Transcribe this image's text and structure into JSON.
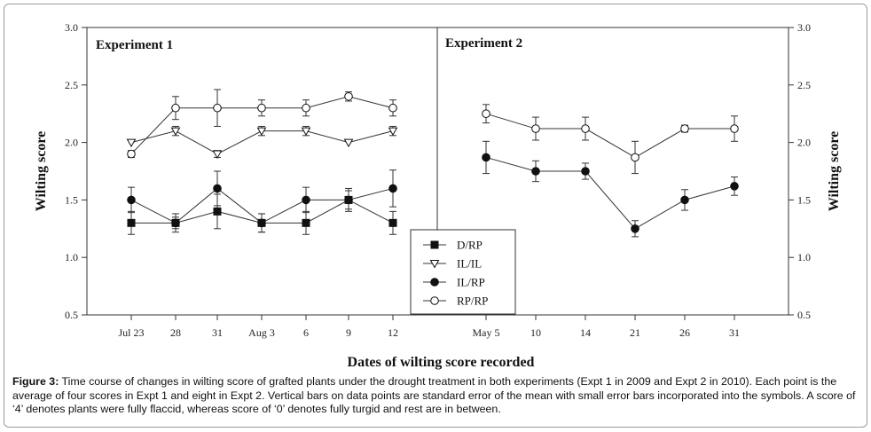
{
  "chart_data": {
    "type": "line",
    "ylabel": "Wilting score",
    "xlabel": "Dates of wilting score recorded",
    "ylim": [
      0.5,
      3.0
    ],
    "yticks": [
      "0.5",
      "1.0",
      "1.5",
      "2.0",
      "2.5",
      "3.0"
    ],
    "legend_position": "bottom-center",
    "panels": [
      {
        "title": "Experiment 1",
        "categories": [
          "Jul 23",
          "28",
          "31",
          "Aug 3",
          "6",
          "9",
          "12"
        ],
        "series": [
          {
            "name": "D/RP",
            "marker": "filled-square",
            "values": [
              1.3,
              1.3,
              1.4,
              1.3,
              1.3,
              1.5,
              1.3
            ],
            "errors": [
              0.1,
              0.05,
              0.15,
              0.08,
              0.1,
              0.08,
              0.1
            ]
          },
          {
            "name": "IL/IL",
            "marker": "open-triangle",
            "values": [
              2.0,
              2.1,
              1.9,
              2.1,
              2.1,
              2.0,
              2.1
            ],
            "errors": [
              0.0,
              0.04,
              0.03,
              0.04,
              0.04,
              0.0,
              0.04
            ]
          },
          {
            "name": "IL/RP",
            "marker": "filled-circle",
            "values": [
              1.5,
              1.3,
              1.6,
              1.3,
              1.5,
              1.5,
              1.6
            ],
            "errors": [
              0.11,
              0.08,
              0.15,
              0.08,
              0.11,
              0.1,
              0.16
            ]
          },
          {
            "name": "RP/RP",
            "marker": "open-circle",
            "values": [
              1.9,
              2.3,
              2.3,
              2.3,
              2.3,
              2.4,
              2.3
            ],
            "errors": [
              0.03,
              0.1,
              0.16,
              0.07,
              0.07,
              0.04,
              0.07
            ]
          }
        ]
      },
      {
        "title": "Experiment 2",
        "categories": [
          "May 5",
          "10",
          "14",
          "21",
          "26",
          "31"
        ],
        "series": [
          {
            "name": "IL/RP",
            "marker": "filled-circle",
            "values": [
              1.87,
              1.75,
              1.75,
              1.25,
              1.5,
              1.62
            ],
            "errors": [
              0.14,
              0.09,
              0.07,
              0.07,
              0.09,
              0.08
            ]
          },
          {
            "name": "RP/RP",
            "marker": "open-circle",
            "values": [
              2.25,
              2.12,
              2.12,
              1.87,
              2.12,
              2.12
            ],
            "errors": [
              0.08,
              0.1,
              0.1,
              0.14,
              0.03,
              0.11
            ]
          }
        ]
      }
    ],
    "legend": [
      "D/RP",
      "IL/IL",
      "IL/RP",
      "RP/RP"
    ]
  },
  "caption": {
    "label": "Figure 3:",
    "text": " Time course of changes in wilting score of grafted plants under the drought treatment in both experiments (Expt 1 in 2009 and Expt 2 in 2010). Each point is the average of four scores in Expt 1 and eight in Expt 2. Vertical bars on data points are standard error of the mean with small error bars incorporated into the symbols. A score of ‘4’ denotes plants were fully flaccid, whereas score of ‘0’ denotes fully turgid and rest are in between."
  }
}
